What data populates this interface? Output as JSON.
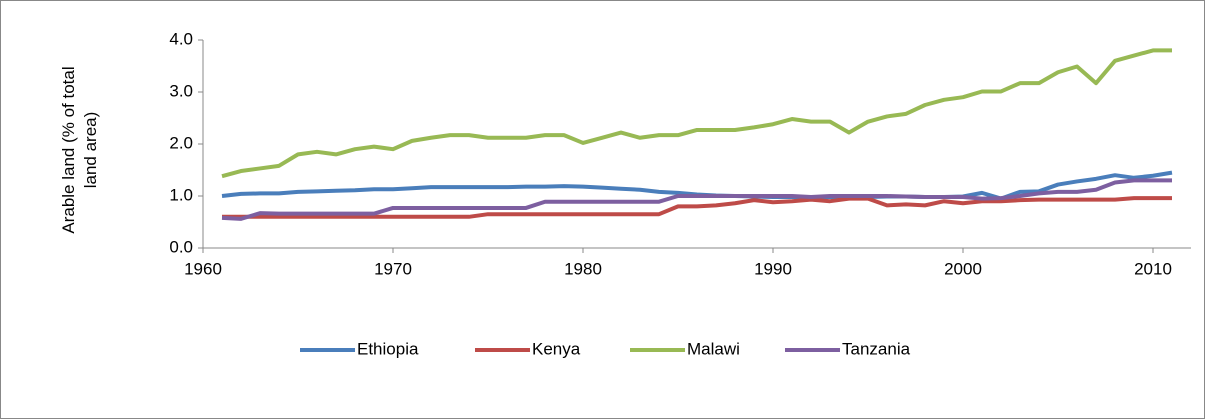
{
  "chart_data": {
    "type": "line",
    "ylabel": "Arable land (% of total land area)",
    "x": [
      1961,
      1962,
      1963,
      1964,
      1965,
      1966,
      1967,
      1968,
      1969,
      1970,
      1971,
      1972,
      1973,
      1974,
      1975,
      1976,
      1977,
      1978,
      1979,
      1980,
      1981,
      1982,
      1983,
      1984,
      1985,
      1986,
      1987,
      1988,
      1989,
      1990,
      1991,
      1992,
      1993,
      1994,
      1995,
      1996,
      1997,
      1998,
      1999,
      2000,
      2001,
      2002,
      2003,
      2004,
      2005,
      2006,
      2007,
      2008,
      2009,
      2010,
      2011
    ],
    "series": [
      {
        "name": "Ethiopia",
        "color": "#4a7ebb",
        "values": [
          1.0,
          1.04,
          1.05,
          1.05,
          1.08,
          1.09,
          1.1,
          1.11,
          1.13,
          1.13,
          1.15,
          1.17,
          1.17,
          1.17,
          1.17,
          1.17,
          1.18,
          1.18,
          1.19,
          1.18,
          1.16,
          1.14,
          1.12,
          1.08,
          1.06,
          1.03,
          1.01,
          1.0,
          0.99,
          0.98,
          0.98,
          0.98,
          0.98,
          0.98,
          0.98,
          0.99,
          0.99,
          0.98,
          0.98,
          0.99,
          1.06,
          0.95,
          1.08,
          1.09,
          1.22,
          1.28,
          1.33,
          1.4,
          1.35,
          1.39,
          1.45
        ]
      },
      {
        "name": "Kenya",
        "color": "#be4b48",
        "values": [
          0.6,
          0.6,
          0.6,
          0.6,
          0.6,
          0.6,
          0.6,
          0.6,
          0.6,
          0.6,
          0.6,
          0.6,
          0.6,
          0.6,
          0.65,
          0.65,
          0.65,
          0.65,
          0.65,
          0.65,
          0.65,
          0.65,
          0.65,
          0.65,
          0.8,
          0.8,
          0.82,
          0.86,
          0.92,
          0.88,
          0.9,
          0.93,
          0.9,
          0.95,
          0.95,
          0.82,
          0.84,
          0.82,
          0.9,
          0.86,
          0.9,
          0.9,
          0.92,
          0.93,
          0.93,
          0.93,
          0.93,
          0.93,
          0.96,
          0.96,
          0.96
        ]
      },
      {
        "name": "Malawi",
        "color": "#98b954",
        "values": [
          1.38,
          1.48,
          1.53,
          1.58,
          1.8,
          1.85,
          1.8,
          1.9,
          1.95,
          1.9,
          2.06,
          2.12,
          2.17,
          2.17,
          2.12,
          2.12,
          2.12,
          2.17,
          2.17,
          2.02,
          2.12,
          2.22,
          2.12,
          2.17,
          2.17,
          2.27,
          2.27,
          2.27,
          2.32,
          2.38,
          2.48,
          2.43,
          2.43,
          2.22,
          2.43,
          2.53,
          2.58,
          2.75,
          2.85,
          2.9,
          3.01,
          3.01,
          3.17,
          3.17,
          3.38,
          3.49,
          3.17,
          3.6,
          3.7,
          3.8,
          3.8
        ]
      },
      {
        "name": "Tanzania",
        "color": "#7d5fa0",
        "values": [
          0.58,
          0.56,
          0.67,
          0.66,
          0.66,
          0.66,
          0.66,
          0.66,
          0.66,
          0.77,
          0.77,
          0.77,
          0.77,
          0.77,
          0.77,
          0.77,
          0.77,
          0.89,
          0.89,
          0.89,
          0.89,
          0.89,
          0.89,
          0.89,
          1.0,
          1.0,
          1.0,
          1.0,
          1.0,
          1.0,
          1.0,
          0.98,
          1.0,
          1.0,
          1.0,
          1.0,
          0.99,
          0.98,
          0.98,
          0.98,
          0.95,
          0.96,
          1.0,
          1.05,
          1.08,
          1.08,
          1.12,
          1.26,
          1.3,
          1.3,
          1.3
        ]
      }
    ],
    "xlim": [
      1960,
      2012
    ],
    "xticks": [
      1960,
      1970,
      1980,
      1990,
      2000,
      2010
    ],
    "ylim": [
      0,
      4
    ],
    "yticks": [
      {
        "value": 0,
        "label": "0.0"
      },
      {
        "value": 1,
        "label": "1.0"
      },
      {
        "value": 2,
        "label": "2.0"
      },
      {
        "value": 3,
        "label": "3.0"
      },
      {
        "value": 4,
        "label": "4.0"
      }
    ],
    "legend": "bottom"
  }
}
